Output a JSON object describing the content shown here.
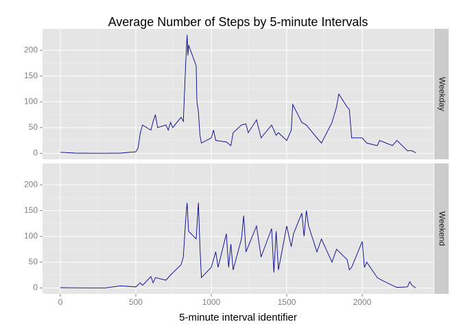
{
  "chart_data": {
    "type": "line",
    "title": "Average Number of Steps by 5-minute Intervals",
    "xlabel": "5-minute interval identifier",
    "xlim": [
      -117.75,
      2472.75
    ],
    "xticks": [
      0,
      500,
      1000,
      1500,
      2000
    ],
    "ylim": [
      -11.5,
      241.5
    ],
    "yticks": [
      0,
      50,
      100,
      150,
      200
    ],
    "grid": true,
    "series": [
      {
        "name": "Weekday",
        "color": "#00008b",
        "x": [
          0,
          100,
          200,
          300,
          400,
          500,
          515,
          530,
          545,
          600,
          615,
          630,
          645,
          700,
          715,
          730,
          745,
          800,
          815,
          830,
          835,
          840,
          845,
          850,
          900,
          905,
          915,
          925,
          935,
          1000,
          1015,
          1030,
          1100,
          1130,
          1145,
          1200,
          1230,
          1245,
          1300,
          1330,
          1400,
          1430,
          1445,
          1500,
          1530,
          1540,
          1600,
          1630,
          1700,
          1730,
          1800,
          1815,
          1830,
          1845,
          1900,
          1915,
          1930,
          2000,
          2030,
          2100,
          2115,
          2200,
          2230,
          2300,
          2330,
          2355
        ],
        "values": [
          2,
          0.5,
          0.3,
          0.2,
          0.5,
          3,
          10,
          40,
          55,
          45,
          62,
          75,
          50,
          55,
          45,
          60,
          50,
          70,
          62,
          170,
          200,
          230,
          190,
          210,
          170,
          100,
          80,
          35,
          20,
          30,
          45,
          25,
          22,
          15,
          40,
          55,
          57,
          40,
          65,
          30,
          55,
          35,
          40,
          25,
          45,
          95,
          60,
          55,
          30,
          20,
          60,
          75,
          90,
          115,
          90,
          85,
          30,
          30,
          20,
          15,
          25,
          15,
          25,
          5,
          5,
          1
        ]
      },
      {
        "name": "Weekend",
        "color": "#00008b",
        "x": [
          0,
          100,
          200,
          300,
          400,
          500,
          530,
          545,
          600,
          615,
          630,
          700,
          730,
          800,
          815,
          830,
          840,
          850,
          900,
          915,
          925,
          935,
          1000,
          1030,
          1045,
          1100,
          1115,
          1130,
          1145,
          1200,
          1215,
          1230,
          1300,
          1330,
          1400,
          1415,
          1430,
          1445,
          1500,
          1530,
          1545,
          1600,
          1615,
          1630,
          1645,
          1700,
          1730,
          1800,
          1830,
          1900,
          1915,
          1930,
          2000,
          2015,
          2030,
          2100,
          2130,
          2200,
          2230,
          2300,
          2315,
          2330,
          2355
        ],
        "values": [
          0.5,
          0.3,
          0,
          0.1,
          4,
          2,
          10,
          5,
          22,
          10,
          20,
          15,
          25,
          45,
          60,
          130,
          165,
          110,
          95,
          165,
          80,
          20,
          40,
          70,
          40,
          105,
          40,
          85,
          35,
          95,
          140,
          70,
          120,
          60,
          115,
          30,
          110,
          35,
          120,
          80,
          105,
          145,
          100,
          150,
          120,
          70,
          95,
          50,
          75,
          55,
          35,
          40,
          90,
          40,
          50,
          20,
          15,
          5,
          1,
          2,
          12,
          5,
          0
        ]
      }
    ]
  }
}
